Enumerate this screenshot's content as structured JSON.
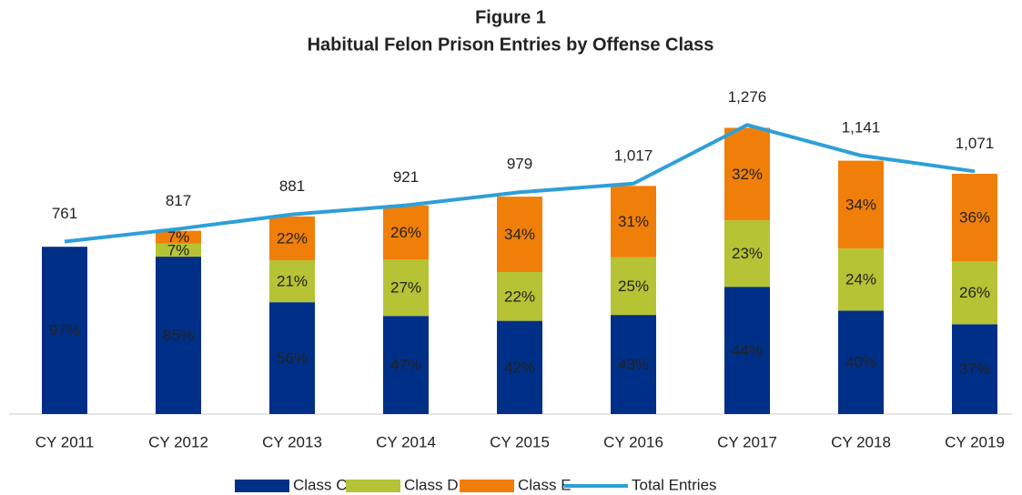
{
  "chart_data": {
    "type": "stacked-bar-line",
    "title": "Figure 1",
    "subtitle": "Habitual Felon Prison Entries by Offense Class",
    "categories": [
      "CY 2011",
      "CY 2012",
      "CY 2013",
      "CY 2014",
      "CY 2015",
      "CY 2016",
      "CY 2017",
      "CY 2018",
      "CY 2019"
    ],
    "series": [
      {
        "name": "Class C",
        "color": "#002f87",
        "label_color": "#ffffff",
        "values": [
          97,
          85,
          56,
          47,
          42,
          43,
          44,
          40,
          37
        ]
      },
      {
        "name": "Class D",
        "color": "#b5c334",
        "label_color": "#222222",
        "values": [
          null,
          7,
          21,
          27,
          22,
          25,
          23,
          24,
          26
        ]
      },
      {
        "name": "Class E",
        "color": "#f07f09",
        "label_color": "#222222",
        "values": [
          null,
          7,
          22,
          26,
          34,
          31,
          32,
          34,
          36
        ]
      },
      {
        "name": "Total Entries",
        "color": "#2e9fd8",
        "type": "line",
        "values": [
          761,
          817,
          881,
          921,
          979,
          1017,
          1276,
          1141,
          1071
        ],
        "value_labels": [
          "761",
          "817",
          "881",
          "921",
          "979",
          "1,017",
          "1,276",
          "1,141",
          "1,071"
        ]
      }
    ],
    "value_suffix": "%"
  }
}
